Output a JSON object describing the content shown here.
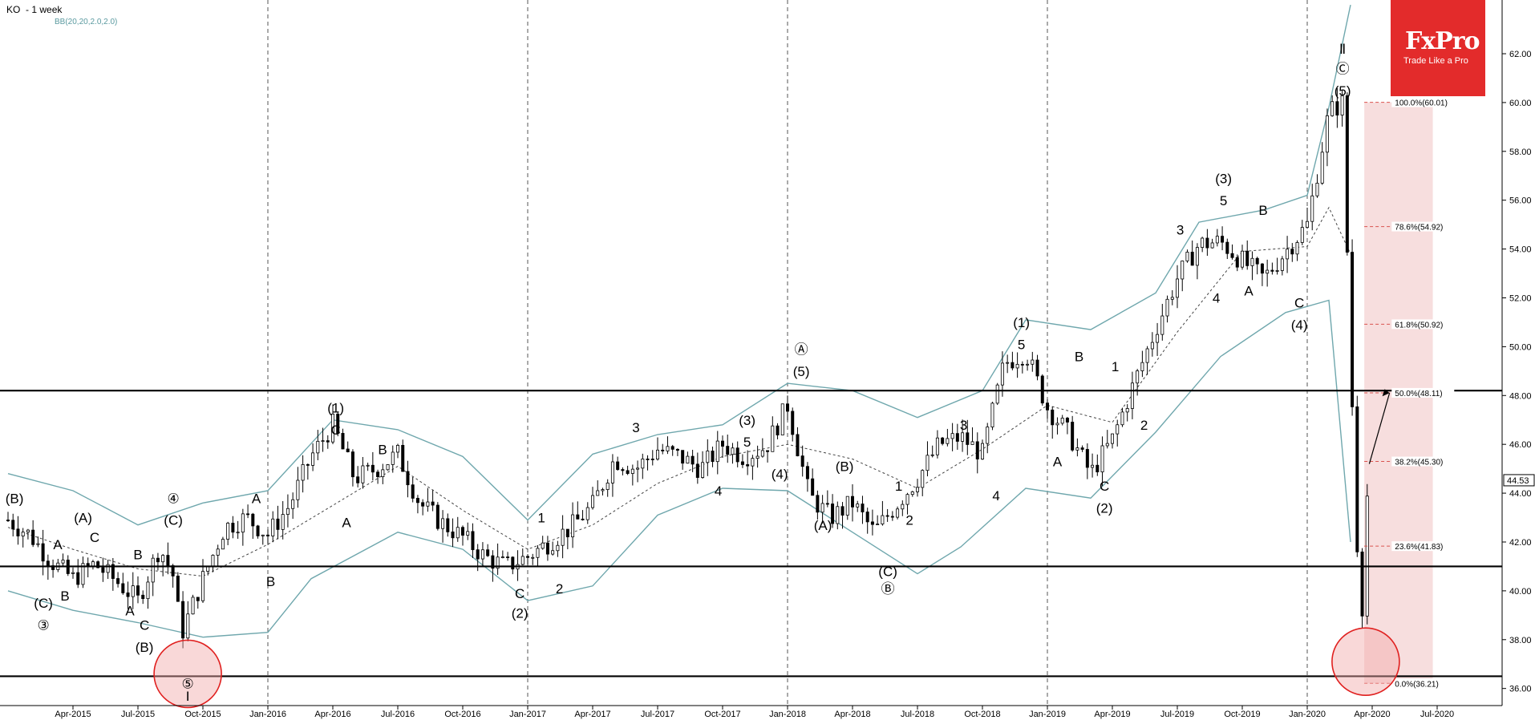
{
  "header": {
    "symbol": "KO",
    "timeframe": "- 1 week",
    "indicator": "BB(20,20,2.0,2.0)"
  },
  "logo": {
    "brand": "FxPro",
    "tagline": "Trade Like a Pro"
  },
  "chart_data": {
    "type": "candlestick",
    "symbol": "KO",
    "timeframe": "1 week",
    "last_price": "44.53",
    "ylim": [
      35.3,
      64.2
    ],
    "y_ticks": [
      "36.00",
      "38.00",
      "40.00",
      "42.00",
      "44.00",
      "46.00",
      "48.00",
      "50.00",
      "52.00",
      "54.00",
      "56.00",
      "58.00",
      "60.00",
      "62.00"
    ],
    "x_ticks": [
      "Apr-2015",
      "Jul-2015",
      "Oct-2015",
      "Jan-2016",
      "Apr-2016",
      "Jul-2016",
      "Oct-2016",
      "Jan-2017",
      "Apr-2017",
      "Jul-2017",
      "Oct-2017",
      "Jan-2018",
      "Apr-2018",
      "Jul-2018",
      "Oct-2018",
      "Jan-2019",
      "Apr-2019",
      "Jul-2019",
      "Oct-2019",
      "Jan-2020",
      "Apr-2020",
      "Jul-2020"
    ],
    "x_range": [
      "2015-01",
      "2020-10"
    ],
    "horizontal_levels": [
      48.2,
      41.0,
      36.5
    ],
    "fibonacci": [
      {
        "label": "100.0%(60.01)",
        "value": 60.01
      },
      {
        "label": "78.6%(54.92)",
        "value": 54.92
      },
      {
        "label": "61.8%(50.92)",
        "value": 50.92
      },
      {
        "label": "50.0%(48.11)",
        "value": 48.11
      },
      {
        "label": "38.2%(45.30)",
        "value": 45.3
      },
      {
        "label": "23.6%(41.83)",
        "value": 41.83
      },
      {
        "label": "0.0%(36.21)",
        "value": 36.21
      }
    ],
    "price_path": [
      [
        "2015-01",
        42.9
      ],
      [
        "2015-02",
        42.3
      ],
      [
        "2015-03",
        41.2
      ],
      [
        "2015-04",
        40.5
      ],
      [
        "2015-05",
        41.1
      ],
      [
        "2015-06",
        40.4
      ],
      [
        "2015-07",
        39.6
      ],
      [
        "2015-08",
        41.8
      ],
      [
        "2015-08-20",
        40.6
      ],
      [
        "2015-09",
        38.2
      ],
      [
        "2015-10",
        40.5
      ],
      [
        "2015-11",
        42.6
      ],
      [
        "2015-12",
        43.0
      ],
      [
        "2016-01",
        42.3
      ],
      [
        "2016-02",
        43.5
      ],
      [
        "2016-03",
        45.5
      ],
      [
        "2016-04",
        46.8
      ],
      [
        "2016-05",
        44.6
      ],
      [
        "2016-06",
        45.0
      ],
      [
        "2016-07",
        45.6
      ],
      [
        "2016-08",
        43.6
      ],
      [
        "2016-09",
        42.8
      ],
      [
        "2016-10",
        42.2
      ],
      [
        "2016-11",
        41.4
      ],
      [
        "2016-12",
        41.0
      ],
      [
        "2017-01",
        41.4
      ],
      [
        "2017-02",
        42.0
      ],
      [
        "2017-03",
        42.6
      ],
      [
        "2017-04",
        43.5
      ],
      [
        "2017-05",
        45.4
      ],
      [
        "2017-06",
        45.0
      ],
      [
        "2017-07",
        45.8
      ],
      [
        "2017-08",
        45.5
      ],
      [
        "2017-09",
        45.0
      ],
      [
        "2017-10",
        46.0
      ],
      [
        "2017-11",
        45.5
      ],
      [
        "2017-12",
        45.9
      ],
      [
        "2018-01",
        47.6
      ],
      [
        "2018-02",
        43.9
      ],
      [
        "2018-03",
        43.0
      ],
      [
        "2018-04",
        43.6
      ],
      [
        "2018-05",
        42.4
      ],
      [
        "2018-06",
        43.5
      ],
      [
        "2018-07",
        44.6
      ],
      [
        "2018-08",
        46.0
      ],
      [
        "2018-09",
        46.3
      ],
      [
        "2018-10",
        45.6
      ],
      [
        "2018-11",
        49.3
      ],
      [
        "2018-12",
        49.8
      ],
      [
        "2019-01",
        47.5
      ],
      [
        "2019-02",
        46.4
      ],
      [
        "2019-03",
        44.8
      ],
      [
        "2019-04",
        46.2
      ],
      [
        "2019-05",
        48.5
      ],
      [
        "2019-06",
        50.7
      ],
      [
        "2019-07",
        52.8
      ],
      [
        "2019-08",
        54.2
      ],
      [
        "2019-09",
        54.3
      ],
      [
        "2019-10",
        53.5
      ],
      [
        "2019-11",
        52.8
      ],
      [
        "2020-01",
        55.0
      ],
      [
        "2020-02",
        59.6
      ],
      [
        "2020-02-20",
        60.0
      ],
      [
        "2020-03",
        49.5
      ],
      [
        "2020-03-15",
        38.0
      ],
      [
        "2020-03-25",
        44.5
      ]
    ],
    "bollinger": {
      "upper": [
        [
          "2015-01",
          44.8
        ],
        [
          "2015-04",
          44.1
        ],
        [
          "2015-07",
          42.7
        ],
        [
          "2015-10",
          43.6
        ],
        [
          "2016-01",
          44.1
        ],
        [
          "2016-04",
          47.0
        ],
        [
          "2016-07",
          46.6
        ],
        [
          "2016-10",
          45.5
        ],
        [
          "2017-01",
          42.9
        ],
        [
          "2017-04",
          45.6
        ],
        [
          "2017-07",
          46.4
        ],
        [
          "2017-10",
          46.8
        ],
        [
          "2018-01",
          48.5
        ],
        [
          "2018-04",
          48.2
        ],
        [
          "2018-07",
          47.1
        ],
        [
          "2018-10",
          48.2
        ],
        [
          "2018-12",
          51.1
        ],
        [
          "2019-03",
          50.7
        ],
        [
          "2019-06",
          52.2
        ],
        [
          "2019-08",
          55.1
        ],
        [
          "2019-11",
          55.6
        ],
        [
          "2020-01",
          56.2
        ],
        [
          "2020-02",
          59.8
        ],
        [
          "2020-03",
          64.0
        ]
      ],
      "middle": [
        [
          "2015-01",
          42.6
        ],
        [
          "2015-04",
          41.7
        ],
        [
          "2015-07",
          40.9
        ],
        [
          "2015-10",
          40.6
        ],
        [
          "2016-01",
          41.9
        ],
        [
          "2016-04",
          43.5
        ],
        [
          "2016-07",
          45.1
        ],
        [
          "2016-10",
          43.3
        ],
        [
          "2017-01",
          41.7
        ],
        [
          "2017-04",
          42.7
        ],
        [
          "2017-07",
          44.4
        ],
        [
          "2017-10",
          45.5
        ],
        [
          "2018-01",
          46.0
        ],
        [
          "2018-04",
          45.4
        ],
        [
          "2018-07",
          44.2
        ],
        [
          "2018-10",
          45.8
        ],
        [
          "2019-01",
          47.6
        ],
        [
          "2019-04",
          46.9
        ],
        [
          "2019-07",
          50.6
        ],
        [
          "2019-10",
          53.9
        ],
        [
          "2020-01",
          54.1
        ],
        [
          "2020-02",
          55.7
        ],
        [
          "2020-03",
          53.8
        ]
      ],
      "lower": [
        [
          "2015-01",
          40.0
        ],
        [
          "2015-04",
          39.2
        ],
        [
          "2015-07",
          38.7
        ],
        [
          "2015-10",
          38.1
        ],
        [
          "2016-01",
          38.3
        ],
        [
          "2016-03",
          40.5
        ],
        [
          "2016-07",
          42.4
        ],
        [
          "2016-10",
          41.7
        ],
        [
          "2017-01",
          39.6
        ],
        [
          "2017-04",
          40.2
        ],
        [
          "2017-07",
          43.1
        ],
        [
          "2017-10",
          44.2
        ],
        [
          "2018-01",
          44.1
        ],
        [
          "2018-04",
          42.4
        ],
        [
          "2018-07",
          40.7
        ],
        [
          "2018-09",
          41.8
        ],
        [
          "2018-12",
          44.2
        ],
        [
          "2019-03",
          43.8
        ],
        [
          "2019-06",
          46.5
        ],
        [
          "2019-09",
          49.6
        ],
        [
          "2019-12",
          51.4
        ],
        [
          "2020-02",
          51.9
        ],
        [
          "2020-03",
          42.0
        ]
      ]
    },
    "wave_labels": [
      [
        "2015-01-10",
        43.6,
        "(B)"
      ],
      [
        "2015-04-15",
        42.8,
        "(A)"
      ],
      [
        "2015-05-01",
        42.0,
        "C"
      ],
      [
        "2015-03-10",
        41.7,
        "A"
      ],
      [
        "2015-02-20",
        39.3,
        "(C)"
      ],
      [
        "2015-02-20",
        38.4,
        "③"
      ],
      [
        "2015-03-20",
        39.6,
        "B"
      ],
      [
        "2015-07-01",
        41.3,
        "B"
      ],
      [
        "2015-06-20",
        39.0,
        "A"
      ],
      [
        "2015-07-10",
        38.4,
        "C"
      ],
      [
        "2015-07-10",
        37.5,
        "(B)"
      ],
      [
        "2015-08-20",
        43.6,
        "④"
      ],
      [
        "2015-08-20",
        42.7,
        "(C)"
      ],
      [
        "2015-09-10",
        36.0,
        "⑤"
      ],
      [
        "2015-09-10",
        35.5,
        "I"
      ],
      [
        "2015-12-15",
        43.6,
        "A"
      ],
      [
        "2016-01-05",
        40.2,
        "B"
      ],
      [
        "2016-04-05",
        47.3,
        "(1)"
      ],
      [
        "2016-04-05",
        46.4,
        "C"
      ],
      [
        "2016-06-10",
        45.6,
        "B"
      ],
      [
        "2016-04-20",
        42.6,
        "A"
      ],
      [
        "2016-12-20",
        39.7,
        "C"
      ],
      [
        "2016-12-20",
        38.9,
        "(2)"
      ],
      [
        "2017-01-20",
        42.8,
        "1"
      ],
      [
        "2017-02-15",
        39.9,
        "2"
      ],
      [
        "2017-06-01",
        46.5,
        "3"
      ],
      [
        "2017-09-25",
        43.9,
        "4"
      ],
      [
        "2017-11-05",
        45.9,
        "5"
      ],
      [
        "2017-11-05",
        46.8,
        "(3)"
      ],
      [
        "2017-12-20",
        44.6,
        "(4)"
      ],
      [
        "2018-01-20",
        49.7,
        "Ⓐ"
      ],
      [
        "2018-01-20",
        48.8,
        "(5)"
      ],
      [
        "2018-03-20",
        44.9,
        "(B)"
      ],
      [
        "2018-02-20",
        42.5,
        "(A)"
      ],
      [
        "2018-05-20",
        40.6,
        "(C)"
      ],
      [
        "2018-05-20",
        39.9,
        "Ⓑ"
      ],
      [
        "2018-06-05",
        44.1,
        "1"
      ],
      [
        "2018-06-20",
        42.7,
        "2"
      ],
      [
        "2018-09-05",
        46.6,
        "3"
      ],
      [
        "2018-10-20",
        43.7,
        "4"
      ],
      [
        "2018-11-25",
        49.9,
        "5"
      ],
      [
        "2018-11-25",
        50.8,
        "(1)"
      ],
      [
        "2019-01-15",
        45.1,
        "A"
      ],
      [
        "2019-02-15",
        49.4,
        "B"
      ],
      [
        "2019-03-20",
        44.1,
        "C"
      ],
      [
        "2019-03-20",
        43.2,
        "(2)"
      ],
      [
        "2019-04-05",
        49.0,
        "1"
      ],
      [
        "2019-05-15",
        46.6,
        "2"
      ],
      [
        "2019-07-05",
        54.6,
        "3"
      ],
      [
        "2019-08-25",
        51.8,
        "4"
      ],
      [
        "2019-09-05",
        55.8,
        "5"
      ],
      [
        "2019-09-05",
        56.7,
        "(3)"
      ],
      [
        "2019-10-10",
        52.1,
        "A"
      ],
      [
        "2019-10-30",
        55.4,
        "B"
      ],
      [
        "2019-12-20",
        51.6,
        "C"
      ],
      [
        "2019-12-20",
        50.7,
        "(4)"
      ],
      [
        "2020-02-20",
        62.0,
        "Ⅱ"
      ],
      [
        "2020-02-20",
        61.2,
        "Ⓒ"
      ],
      [
        "2020-02-20",
        60.3,
        "(5)"
      ]
    ],
    "circles": [
      [
        "2015-09-10",
        36.6
      ],
      [
        "2020-03-22",
        37.1
      ]
    ],
    "fib_zone": [
      36.21,
      60.01
    ],
    "arrow": [
      [
        "2020-03-27",
        45.2
      ],
      [
        "2020-04-25",
        48.1
      ]
    ]
  }
}
